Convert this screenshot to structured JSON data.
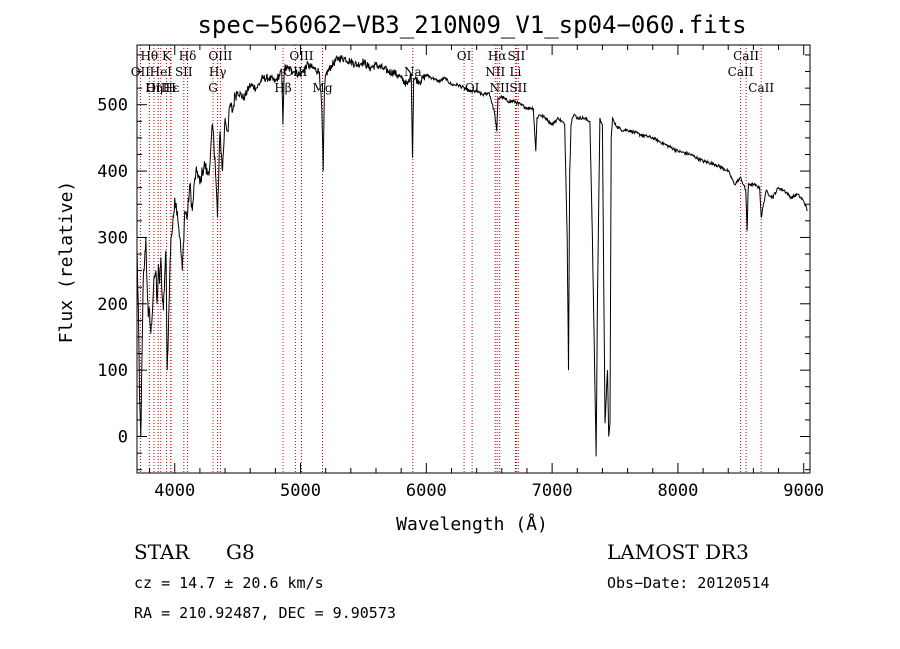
{
  "chart_data": {
    "type": "line",
    "title": "spec−56062−VB3_210N09_V1_sp04−060.fits",
    "xlabel": "Wavelength (Å)",
    "ylabel": "Flux (relative)",
    "xlim": [
      3700,
      9050
    ],
    "ylim": [
      -55,
      590
    ],
    "xticks": [
      4000,
      5000,
      6000,
      7000,
      8000,
      9000
    ],
    "xtick_labels": [
      "4000",
      "5000",
      "6000",
      "7000",
      "8000",
      "9000"
    ],
    "yticks": [
      0,
      100,
      200,
      300,
      400,
      500
    ],
    "ytick_labels": [
      "0",
      "100",
      "200",
      "300",
      "400",
      "500"
    ],
    "grid": false,
    "series": [
      {
        "name": "flux",
        "x": [
          3700,
          3710,
          3720,
          3730,
          3740,
          3750,
          3760,
          3770,
          3780,
          3790,
          3800,
          3810,
          3820,
          3830,
          3840,
          3850,
          3860,
          3870,
          3880,
          3890,
          3900,
          3910,
          3920,
          3930,
          3940,
          3950,
          3960,
          3970,
          3980,
          3990,
          4000,
          4020,
          4040,
          4060,
          4080,
          4100,
          4120,
          4140,
          4160,
          4180,
          4200,
          4220,
          4240,
          4260,
          4280,
          4300,
          4320,
          4340,
          4360,
          4380,
          4400,
          4420,
          4440,
          4460,
          4480,
          4500,
          4550,
          4600,
          4650,
          4700,
          4750,
          4800,
          4850,
          4860,
          4870,
          4900,
          4950,
          5000,
          5050,
          5100,
          5150,
          5170,
          5180,
          5190,
          5200,
          5250,
          5300,
          5350,
          5400,
          5450,
          5500,
          5550,
          5600,
          5650,
          5700,
          5750,
          5800,
          5850,
          5880,
          5890,
          5900,
          5950,
          6000,
          6050,
          6100,
          6150,
          6200,
          6250,
          6300,
          6350,
          6400,
          6450,
          6500,
          6540,
          6560,
          6570,
          6580,
          6600,
          6650,
          6700,
          6750,
          6800,
          6850,
          6870,
          6880,
          6900,
          6950,
          7000,
          7050,
          7100,
          7120,
          7130,
          7140,
          7150,
          7160,
          7180,
          7200,
          7250,
          7300,
          7320,
          7350,
          7360,
          7380,
          7400,
          7420,
          7440,
          7450,
          7460,
          7470,
          7480,
          7500,
          7550,
          7600,
          7700,
          7800,
          7900,
          8000,
          8100,
          8200,
          8300,
          8400,
          8450,
          8500,
          8540,
          8550,
          8560,
          8600,
          8650,
          8662,
          8700,
          8750,
          8800,
          8850,
          8900,
          8950,
          9000,
          9030
        ],
        "y": [
          280,
          200,
          60,
          0,
          120,
          240,
          260,
          300,
          230,
          180,
          190,
          155,
          180,
          220,
          240,
          250,
          200,
          260,
          230,
          270,
          210,
          190,
          240,
          280,
          100,
          160,
          240,
          300,
          310,
          330,
          360,
          340,
          300,
          250,
          340,
          330,
          380,
          340,
          390,
          400,
          380,
          400,
          410,
          395,
          410,
          470,
          420,
          330,
          460,
          400,
          480,
          460,
          500,
          490,
          515,
          520,
          510,
          530,
          525,
          540,
          540,
          535,
          550,
          470,
          555,
          555,
          550,
          545,
          560,
          555,
          550,
          490,
          400,
          520,
          545,
          560,
          570,
          570,
          565,
          560,
          565,
          555,
          560,
          555,
          550,
          548,
          540,
          530,
          545,
          420,
          540,
          535,
          545,
          540,
          535,
          540,
          530,
          530,
          525,
          520,
          520,
          515,
          518,
          490,
          460,
          510,
          510,
          512,
          505,
          505,
          500,
          495,
          495,
          430,
          480,
          485,
          480,
          470,
          480,
          470,
          300,
          100,
          400,
          470,
          480,
          485,
          480,
          480,
          475,
          300,
          -30,
          200,
          480,
          470,
          20,
          100,
          0,
          20,
          450,
          480,
          470,
          462,
          462,
          455,
          450,
          440,
          430,
          425,
          415,
          410,
          400,
          380,
          390,
          370,
          310,
          380,
          380,
          375,
          330,
          370,
          360,
          375,
          370,
          360,
          365,
          355,
          340
        ]
      }
    ],
    "line_markers": [
      {
        "label": "Hθ",
        "wavelength": 3798,
        "row": 1
      },
      {
        "label": "OII",
        "wavelength": 3727,
        "row": 2
      },
      {
        "label": "OIII",
        "wavelength": 3869,
        "row": 3
      },
      {
        "label": "Hη",
        "wavelength": 3835,
        "row": 3
      },
      {
        "label": "HeI",
        "wavelength": 3889,
        "row": 2
      },
      {
        "label": "Hε",
        "wavelength": 3970,
        "row": 3
      },
      {
        "label": "H",
        "wavelength": 3968,
        "row": 3
      },
      {
        "label": "K",
        "wavelength": 3934,
        "row": 1
      },
      {
        "label": "SII",
        "wavelength": 4072,
        "row": 2
      },
      {
        "label": "Hδ",
        "wavelength": 4102,
        "row": 1
      },
      {
        "label": "OIII",
        "wavelength": 4363,
        "row": 1
      },
      {
        "label": "Hγ",
        "wavelength": 4341,
        "row": 2
      },
      {
        "label": "G",
        "wavelength": 4305,
        "row": 3
      },
      {
        "label": "Hβ",
        "wavelength": 4861,
        "row": 3
      },
      {
        "label": "OIII",
        "wavelength": 5007,
        "row": 1
      },
      {
        "label": "OIII",
        "wavelength": 4959,
        "row": 2
      },
      {
        "label": "Mg",
        "wavelength": 5175,
        "row": 3
      },
      {
        "label": "Na",
        "wavelength": 5893,
        "row": 2
      },
      {
        "label": "OI",
        "wavelength": 6300,
        "row": 1
      },
      {
        "label": "OI",
        "wavelength": 6364,
        "row": 3
      },
      {
        "label": "Hα",
        "wavelength": 6563,
        "row": 1
      },
      {
        "label": "NII",
        "wavelength": 6548,
        "row": 2
      },
      {
        "label": "NII",
        "wavelength": 6583,
        "row": 3
      },
      {
        "label": "SII",
        "wavelength": 6716,
        "row": 1
      },
      {
        "label": "Li",
        "wavelength": 6708,
        "row": 2
      },
      {
        "label": "SII",
        "wavelength": 6731,
        "row": 3
      },
      {
        "label": "CaII",
        "wavelength": 8542,
        "row": 1
      },
      {
        "label": "CaII",
        "wavelength": 8498,
        "row": 2
      },
      {
        "label": "CaII",
        "wavelength": 8662,
        "row": 3
      }
    ]
  },
  "footer": {
    "object_class": "STAR",
    "subclass": "G8",
    "survey": "LAMOST DR3",
    "redshift": "cz = 14.7 ± 20.6 km/s",
    "obs_date": "Obs−Date: 20120514",
    "coords": "RA = 210.92487, DEC =    9.90573"
  },
  "colors": {
    "line_marker": "#c00000",
    "spectrum": "#000000"
  }
}
